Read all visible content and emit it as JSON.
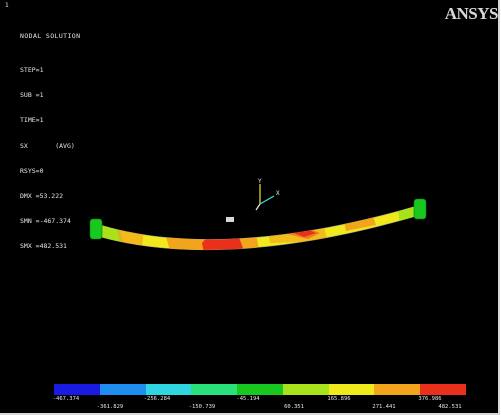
{
  "window": {
    "number": "1",
    "logo": "ANSYS"
  },
  "solution_info": {
    "title": "NODAL SOLUTION",
    "lines": [
      "STEP=1",
      "SUB =1",
      "TIME=1",
      "SX       (AVG)",
      "RSYS=0",
      "DMX =53.222",
      "SMN =-467.374",
      "SMX =482.531"
    ]
  },
  "triad": {
    "y_label": "Y",
    "x_label": "X"
  },
  "legend": {
    "colors": [
      "#1a1ae0",
      "#1f8ef0",
      "#2fd6e0",
      "#29e07a",
      "#19c81e",
      "#a7e21a",
      "#f0ea1c",
      "#f2a51b",
      "#e8301b"
    ],
    "upper_labels": [
      "-467.374",
      "-256.284",
      "-45.194",
      "165.896",
      "376.986"
    ],
    "lower_labels": [
      "-361.829",
      "-150.739",
      "60.351",
      "271.441",
      "482.531"
    ]
  },
  "model": {
    "description_colors": {
      "beam_base": "#f0ea1c",
      "hot": "#e8301b",
      "warm": "#f2a51b",
      "mid": "#a7e21a",
      "support": "#19c81e"
    }
  }
}
